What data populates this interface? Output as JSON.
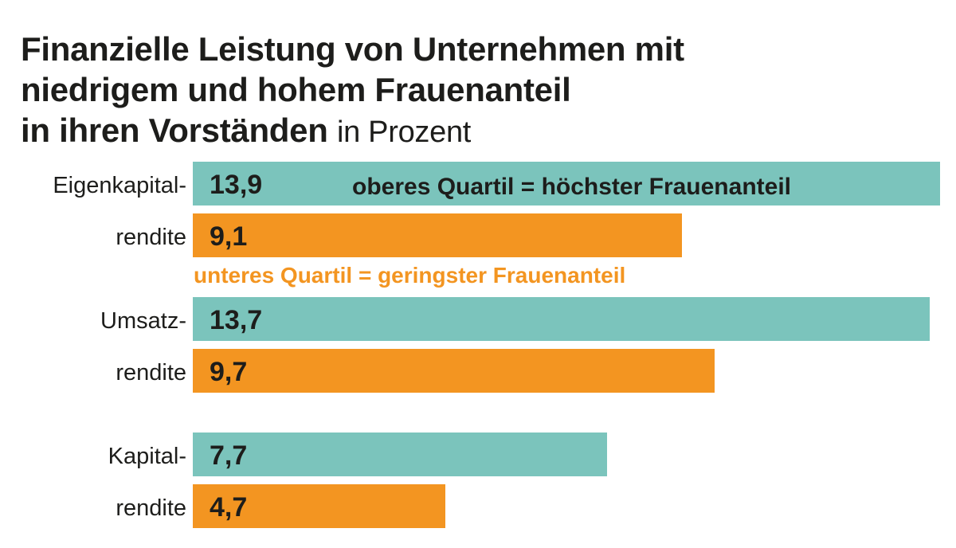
{
  "chart_data": {
    "type": "bar",
    "orientation": "horizontal",
    "title": "Finanzielle Leistung von Unternehmen mit niedrigem und hohem Frauenanteil in ihren Vorständen",
    "title_lines": [
      "Finanzielle Leistung von Unternehmen mit",
      "niedrigem und hohem Frauenanteil",
      "in ihren Vorständen"
    ],
    "unit": "in Prozent",
    "categories": [
      {
        "lines": [
          "Eigenkapital-",
          "rendite"
        ]
      },
      {
        "lines": [
          "Umsatz-",
          "rendite"
        ]
      },
      {
        "lines": [
          "Kapital-",
          "rendite"
        ]
      }
    ],
    "series": [
      {
        "name": "oberes Quartil = höchster Frauenanteil",
        "color": "#7bc4bc",
        "values": [
          13.9,
          13.7,
          7.7
        ],
        "labels": [
          "13,9",
          "13,7",
          "7,7"
        ]
      },
      {
        "name": "unteres Quartil = geringster Frauenanteil",
        "color": "#f39521",
        "values": [
          9.1,
          9.7,
          4.7
        ],
        "labels": [
          "9,1",
          "9,7",
          "4,7"
        ]
      }
    ],
    "grid": false,
    "axes_visible": false
  }
}
